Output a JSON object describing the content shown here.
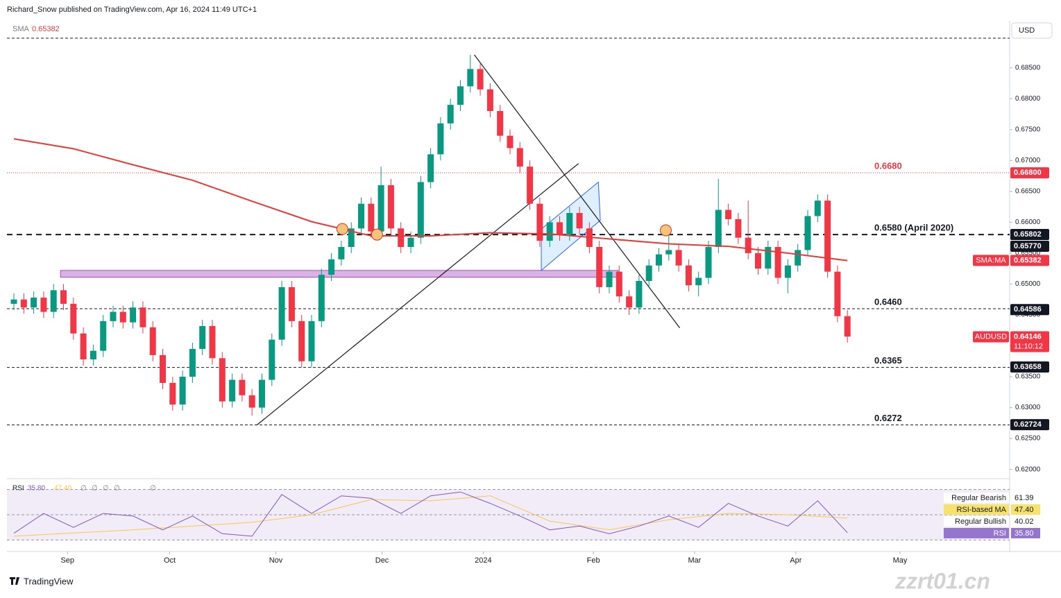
{
  "header": {
    "publisher": "Richard_Snow published on TradingView.com, Apr 16, 2024 11:49 UTC+1",
    "currency": "USD",
    "brand": "TradingView",
    "watermark": "zzrt01.cn"
  },
  "chart_data": {
    "type": "candlestick",
    "indicator": {
      "name": "SMA",
      "value": 0.65382
    },
    "xlim": [
      -0.7,
      100.35
    ],
    "ylim": [
      0.6185,
      0.6926
    ],
    "xticks": [
      {
        "value": 5.4,
        "label": "Sep"
      },
      {
        "value": 15.7,
        "label": "Oct"
      },
      {
        "value": 26.4,
        "label": "Nov"
      },
      {
        "value": 37.1,
        "label": "Dec"
      },
      {
        "value": 47.3,
        "label": "2024"
      },
      {
        "value": 58.4,
        "label": "Feb"
      },
      {
        "value": 68.6,
        "label": "Mar"
      },
      {
        "value": 78.8,
        "label": "Apr"
      },
      {
        "value": 89.3,
        "label": "May"
      }
    ],
    "yticks": [
      {
        "value": 0.685,
        "label": "0.68500"
      },
      {
        "value": 0.68,
        "label": "0.68000"
      },
      {
        "value": 0.675,
        "label": "0.67500"
      },
      {
        "value": 0.67,
        "label": "0.67000"
      },
      {
        "value": 0.665,
        "label": "0.66500"
      },
      {
        "value": 0.66,
        "label": "0.66000"
      },
      {
        "value": 0.655,
        "label": "0.65500"
      },
      {
        "value": 0.65,
        "label": "0.65000"
      },
      {
        "value": 0.645,
        "label": "0.64500"
      },
      {
        "value": 0.64,
        "label": "0.64000"
      },
      {
        "value": 0.635,
        "label": "0.63500"
      },
      {
        "value": 0.63,
        "label": "0.63000"
      },
      {
        "value": 0.625,
        "label": "0.62500"
      },
      {
        "value": 0.62,
        "label": "0.62000"
      }
    ],
    "up_color": "#089981",
    "down_color": "#f23645",
    "x": [
      0,
      1,
      2,
      3,
      4,
      5,
      6,
      7,
      8,
      9,
      10,
      11,
      12,
      13,
      14,
      15,
      16,
      17,
      18,
      19,
      20,
      21,
      22,
      23,
      24,
      25,
      26,
      27,
      28,
      29,
      30,
      31,
      32,
      33,
      34,
      35,
      36,
      37,
      38,
      39,
      40,
      41,
      42,
      43,
      44,
      45,
      46,
      47,
      48,
      49,
      50,
      51,
      52,
      53,
      54,
      55,
      56,
      57,
      58,
      59,
      60,
      61,
      62,
      63,
      64,
      65,
      66,
      67,
      68,
      69,
      70,
      71,
      72,
      73,
      74,
      75,
      76,
      77,
      78,
      79,
      80,
      81,
      82,
      83,
      84
    ],
    "open": [
      0.6468,
      0.6475,
      0.6462,
      0.6478,
      0.6455,
      0.649,
      0.6468,
      0.642,
      0.6378,
      0.6392,
      0.644,
      0.6455,
      0.6438,
      0.6462,
      0.643,
      0.6385,
      0.634,
      0.6305,
      0.635,
      0.6395,
      0.6432,
      0.638,
      0.631,
      0.6345,
      0.632,
      0.63,
      0.6345,
      0.641,
      0.6495,
      0.644,
      0.6375,
      0.644,
      0.6515,
      0.654,
      0.656,
      0.659,
      0.663,
      0.6585,
      0.666,
      0.659,
      0.656,
      0.6575,
      0.6665,
      0.671,
      0.676,
      0.679,
      0.682,
      0.6848,
      0.6815,
      0.678,
      0.674,
      0.672,
      0.669,
      0.663,
      0.657,
      0.66,
      0.658,
      0.6615,
      0.659,
      0.656,
      0.6495,
      0.652,
      0.648,
      0.6462,
      0.6505,
      0.653,
      0.6548,
      0.6555,
      0.653,
      0.6498,
      0.651,
      0.656,
      0.662,
      0.6605,
      0.6575,
      0.655,
      0.6525,
      0.656,
      0.651,
      0.653,
      0.6555,
      0.661,
      0.6635,
      0.652,
      0.6448
    ],
    "high": [
      0.6485,
      0.6485,
      0.6488,
      0.6488,
      0.65,
      0.65,
      0.6478,
      0.643,
      0.6402,
      0.645,
      0.6465,
      0.6465,
      0.6472,
      0.6472,
      0.644,
      0.6395,
      0.635,
      0.636,
      0.6405,
      0.6442,
      0.6442,
      0.639,
      0.6355,
      0.6355,
      0.633,
      0.6355,
      0.642,
      0.6505,
      0.6505,
      0.645,
      0.645,
      0.6525,
      0.655,
      0.657,
      0.66,
      0.664,
      0.664,
      0.669,
      0.667,
      0.66,
      0.6585,
      0.6675,
      0.672,
      0.677,
      0.68,
      0.683,
      0.6871,
      0.6858,
      0.6825,
      0.679,
      0.675,
      0.673,
      0.67,
      0.664,
      0.661,
      0.661,
      0.6625,
      0.6625,
      0.66,
      0.657,
      0.653,
      0.653,
      0.649,
      0.6515,
      0.654,
      0.6558,
      0.658,
      0.6565,
      0.654,
      0.652,
      0.657,
      0.667,
      0.663,
      0.6615,
      0.6635,
      0.656,
      0.657,
      0.657,
      0.654,
      0.6565,
      0.662,
      0.6645,
      0.6645,
      0.653,
      0.6458
    ],
    "low": [
      0.6458,
      0.6452,
      0.6452,
      0.6445,
      0.6445,
      0.6458,
      0.641,
      0.6368,
      0.6368,
      0.6382,
      0.643,
      0.6428,
      0.6428,
      0.642,
      0.6375,
      0.633,
      0.6295,
      0.6295,
      0.634,
      0.6385,
      0.637,
      0.63,
      0.63,
      0.631,
      0.6287,
      0.629,
      0.6335,
      0.64,
      0.643,
      0.6365,
      0.6365,
      0.643,
      0.6505,
      0.653,
      0.655,
      0.658,
      0.6575,
      0.6575,
      0.658,
      0.655,
      0.655,
      0.6565,
      0.6655,
      0.67,
      0.675,
      0.678,
      0.681,
      0.6805,
      0.677,
      0.673,
      0.671,
      0.668,
      0.662,
      0.656,
      0.656,
      0.657,
      0.657,
      0.658,
      0.655,
      0.6485,
      0.6485,
      0.647,
      0.645,
      0.6452,
      0.6495,
      0.652,
      0.6538,
      0.652,
      0.6488,
      0.648,
      0.65,
      0.655,
      0.6595,
      0.6565,
      0.654,
      0.6515,
      0.6515,
      0.65,
      0.6485,
      0.652,
      0.6545,
      0.66,
      0.651,
      0.6438,
      0.6405
    ],
    "close": [
      0.6475,
      0.6462,
      0.6478,
      0.6455,
      0.649,
      0.6468,
      0.642,
      0.6378,
      0.6392,
      0.644,
      0.6455,
      0.6438,
      0.6462,
      0.643,
      0.6385,
      0.634,
      0.6305,
      0.635,
      0.6395,
      0.6432,
      0.638,
      0.631,
      0.6345,
      0.632,
      0.63,
      0.6345,
      0.641,
      0.6495,
      0.644,
      0.6375,
      0.644,
      0.6515,
      0.654,
      0.656,
      0.659,
      0.663,
      0.6585,
      0.666,
      0.659,
      0.656,
      0.6575,
      0.6665,
      0.671,
      0.676,
      0.679,
      0.682,
      0.6848,
      0.6815,
      0.678,
      0.674,
      0.672,
      0.669,
      0.663,
      0.657,
      0.66,
      0.658,
      0.6615,
      0.659,
      0.656,
      0.6495,
      0.652,
      0.648,
      0.6462,
      0.6505,
      0.653,
      0.6548,
      0.6555,
      0.653,
      0.6498,
      0.651,
      0.656,
      0.662,
      0.6605,
      0.6575,
      0.655,
      0.6525,
      0.656,
      0.651,
      0.653,
      0.6555,
      0.661,
      0.6635,
      0.652,
      0.6448,
      0.6415
    ],
    "sma": {
      "color": "#e53935",
      "x": [
        0,
        6,
        12,
        18,
        24,
        30,
        36,
        42,
        48,
        54,
        60,
        66,
        72,
        78,
        84
      ],
      "values": [
        0.6735,
        0.6719,
        0.6693,
        0.6668,
        0.6634,
        0.6601,
        0.6578,
        0.6578,
        0.6583,
        0.6581,
        0.6573,
        0.6565,
        0.6561,
        0.655,
        0.6538
      ]
    },
    "levels": [
      {
        "value": 0.6898,
        "style": "dashed",
        "color": "#131722"
      },
      {
        "value": 0.668,
        "label": "0.6680",
        "style": "dotted",
        "color": "#f23645"
      },
      {
        "value": 0.658,
        "label": "0.6580 (April 2020)",
        "style": "bold",
        "color": "#131722"
      },
      {
        "value": 0.646,
        "label": "0.6460",
        "style": "dashed",
        "color": "#131722"
      },
      {
        "value": 0.6365,
        "label": "0.6365",
        "style": "dashed",
        "color": "#131722"
      },
      {
        "value": 0.6272,
        "label": "0.6272",
        "style": "dashed",
        "color": "#131722"
      }
    ],
    "zone": {
      "x": [
        4.7,
        60.9
      ],
      "y": [
        0.6511,
        0.6522
      ],
      "color": "#d9b3e6"
    },
    "trendlines": [
      {
        "x": [
          24.5,
          56.9
        ],
        "y": [
          0.6272,
          0.6695
        ]
      },
      {
        "x": [
          46.4,
          67.1
        ],
        "y": [
          0.6871,
          0.6429
        ]
      }
    ],
    "channel": {
      "x": [
        53.15,
        58.9,
        59.1,
        53.15
      ],
      "y": [
        0.6589,
        0.6665,
        0.6603,
        0.6522
      ]
    },
    "markers": {
      "x": [
        33.1,
        36.6,
        65.7
      ],
      "y": [
        0.6589,
        0.658,
        0.6587
      ]
    },
    "tags": [
      {
        "value": 0.668,
        "label": "0.66800",
        "color": "#f23645"
      },
      {
        "value": 0.65802,
        "label": "0.65802",
        "color": "#131722"
      },
      {
        "value": 0.6577,
        "label": "0.65770",
        "color": "#131722"
      },
      {
        "value": 0.65382,
        "label": "0.65382",
        "name": "SMA:MA",
        "color": "#f23645"
      },
      {
        "value": 0.64586,
        "label": "0.64586",
        "color": "#131722"
      },
      {
        "value": 0.64146,
        "label": "0.64146",
        "name": "AUDUSD",
        "time": "11:10:12",
        "color": "#f23645"
      },
      {
        "value": 0.63658,
        "label": "0.63658",
        "color": "#131722"
      },
      {
        "value": 0.62724,
        "label": "0.62724",
        "color": "#131722"
      }
    ],
    "rsi": {
      "name": "RSI",
      "value": 35.8,
      "value_label": "35.80",
      "ma_value": 47.4,
      "ma_label": "47.40",
      "extra": [
        "∅",
        "∅",
        "∅",
        "∅",
        "∅"
      ],
      "ylim": [
        23.6,
        76.9
      ],
      "bands": [
        70,
        50,
        30
      ],
      "color": "#7e57c2",
      "ma_color": "#f7c948",
      "x": [
        0,
        3,
        6,
        9,
        12,
        15,
        18,
        21,
        24,
        27,
        30,
        33,
        36,
        39,
        42,
        45,
        48,
        51,
        54,
        57,
        60,
        63,
        66,
        69,
        72,
        75,
        78,
        81,
        84
      ],
      "values": [
        35.3,
        51,
        40,
        51,
        49,
        38,
        49,
        35,
        33,
        66,
        51,
        65,
        63,
        51,
        65,
        68,
        59,
        49,
        38,
        41,
        35,
        41,
        49,
        40,
        59,
        49,
        41,
        61,
        35.8
      ],
      "ma_x": [
        0,
        12,
        24,
        30,
        36,
        42,
        48,
        54,
        60,
        66,
        72,
        78,
        84
      ],
      "ma_values": [
        33,
        38,
        44,
        50,
        62,
        61,
        65,
        45,
        38,
        46,
        51,
        50,
        47.4
      ],
      "legend": [
        {
          "name": "Regular Bearish",
          "value": 61.39,
          "bg": "#ffffff"
        },
        {
          "name": "RSI-based MA",
          "value": 47.4,
          "label": "47.40",
          "bg": "#f7e36b"
        },
        {
          "name": "Regular Bullish",
          "value": 40.02,
          "bg": "#ffffff"
        },
        {
          "name": "RSI",
          "value": 35.8,
          "label": "35.80",
          "bg": "#9575cd"
        }
      ]
    }
  }
}
